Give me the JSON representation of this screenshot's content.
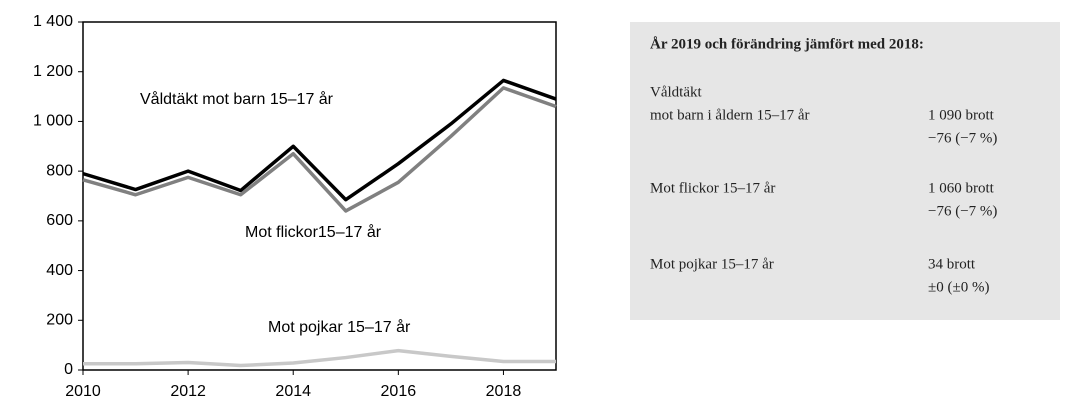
{
  "chart_data": {
    "type": "line",
    "x": [
      2010,
      2011,
      2012,
      2013,
      2014,
      2015,
      2016,
      2017,
      2018,
      2019
    ],
    "series": [
      {
        "name": "Våldtäkt mot barn 15–17 år",
        "color": "#000000",
        "values": [
          790,
          726,
          800,
          722,
          900,
          685,
          830,
          990,
          1165,
          1090
        ]
      },
      {
        "name": "Mot flickor15–17 år",
        "color": "#808080",
        "values": [
          765,
          705,
          775,
          705,
          870,
          640,
          755,
          940,
          1135,
          1060
        ]
      },
      {
        "name": "Mot pojkar 15–17 år",
        "color": "#c8c8c8",
        "values": [
          25,
          25,
          30,
          18,
          28,
          50,
          78,
          55,
          34,
          34
        ]
      }
    ],
    "xlim": [
      2010,
      2019
    ],
    "xticks": [
      2010,
      2012,
      2014,
      2016,
      2018
    ],
    "ylim": [
      0,
      1400
    ],
    "yticks": [
      0,
      200,
      400,
      600,
      800,
      {
        "value": 1000,
        "label": "1 000"
      },
      {
        "value": 1200,
        "label": "1 200"
      },
      {
        "value": 1400,
        "label": "1 400"
      }
    ],
    "grid": false
  },
  "info_box": {
    "title": "År 2019 och förändring jämfört med 2018:",
    "rows": [
      {
        "label": [
          "Våldtäkt",
          "mot barn i åldern 15–17 år"
        ],
        "value": [
          "1 090 brott",
          "−76 (−7 %)"
        ]
      },
      {
        "label": [
          "Mot flickor 15–17 år"
        ],
        "value": [
          "1 060 brott",
          "−76 (−7 %)"
        ]
      },
      {
        "label": [
          "Mot pojkar 15–17 år"
        ],
        "value": [
          "34 brott",
          "±0 (±0 %)"
        ]
      }
    ]
  }
}
